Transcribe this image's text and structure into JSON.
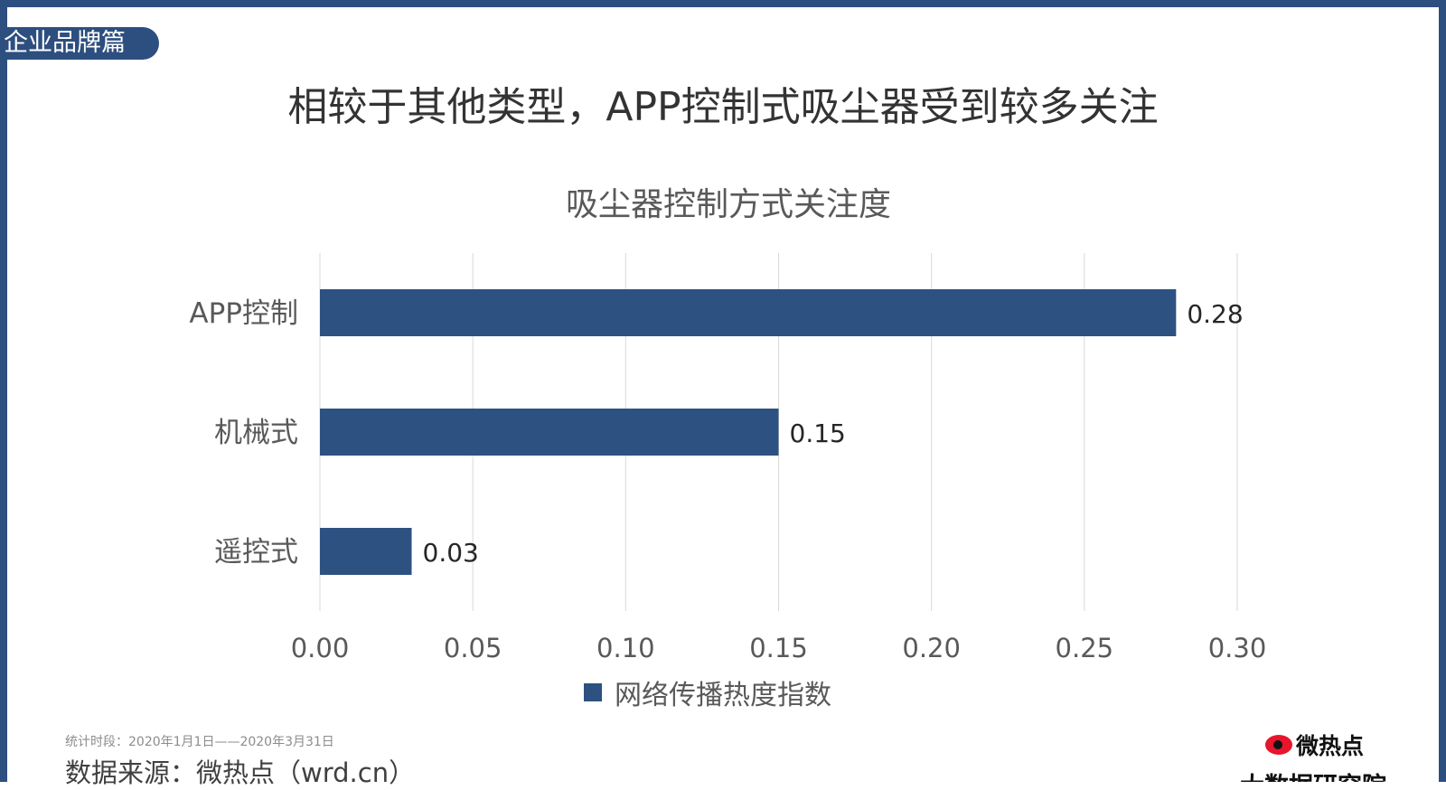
{
  "header": {
    "section_tag": "企业品牌篇",
    "title": "相较于其他类型，APP控制式吸尘器受到较多关注"
  },
  "chart_data": {
    "type": "bar",
    "orientation": "horizontal",
    "title": "吸尘器控制方式关注度",
    "categories": [
      "APP控制",
      "机械式",
      "遥控式"
    ],
    "series": [
      {
        "name": "网络传播热度指数",
        "values": [
          0.28,
          0.15,
          0.03
        ],
        "color": "#2d5181"
      }
    ],
    "data_labels": [
      "0.28",
      "0.15",
      "0.03"
    ],
    "xlim": [
      0,
      0.3
    ],
    "x_ticks": [
      "0.00",
      "0.05",
      "0.10",
      "0.15",
      "0.20",
      "0.25",
      "0.30"
    ],
    "grid": true,
    "legend_position": "bottom"
  },
  "footer": {
    "period": "统计时段：2020年1月1日——2020年3月31日",
    "source": "数据来源：微热点（wrd.cn）",
    "logo_name": "微热点",
    "logo_sub": "大数据研究院"
  },
  "colors": {
    "frame": "#2d4f7f",
    "bar": "#2d5181",
    "grid": "#d9d9d9"
  }
}
